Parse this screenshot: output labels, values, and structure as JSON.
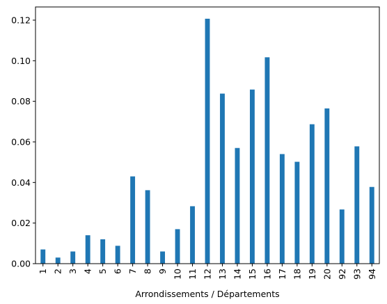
{
  "chart_data": {
    "type": "bar",
    "xlabel": "Arrondissements / Départements",
    "ylabel": "",
    "title": "",
    "categories": [
      "1",
      "2",
      "3",
      "4",
      "5",
      "6",
      "7",
      "8",
      "9",
      "10",
      "11",
      "12",
      "13",
      "14",
      "15",
      "16",
      "17",
      "18",
      "19",
      "20",
      "92",
      "93",
      "94"
    ],
    "values": [
      0.007,
      0.003,
      0.006,
      0.014,
      0.012,
      0.0088,
      0.043,
      0.0362,
      0.006,
      0.017,
      0.0283,
      0.1207,
      0.0838,
      0.057,
      0.0858,
      0.1017,
      0.054,
      0.0502,
      0.0687,
      0.0765,
      0.0267,
      0.0578,
      0.0378
    ],
    "ylim": [
      0,
      0.1265
    ],
    "yticks": [
      0.0,
      0.02,
      0.04,
      0.06,
      0.08,
      0.1,
      0.12
    ],
    "ytick_labels": [
      "0.00",
      "0.02",
      "0.04",
      "0.06",
      "0.08",
      "0.10",
      "0.12"
    ],
    "bar_color": "#1f77b4",
    "grid": false,
    "legend": "none"
  }
}
